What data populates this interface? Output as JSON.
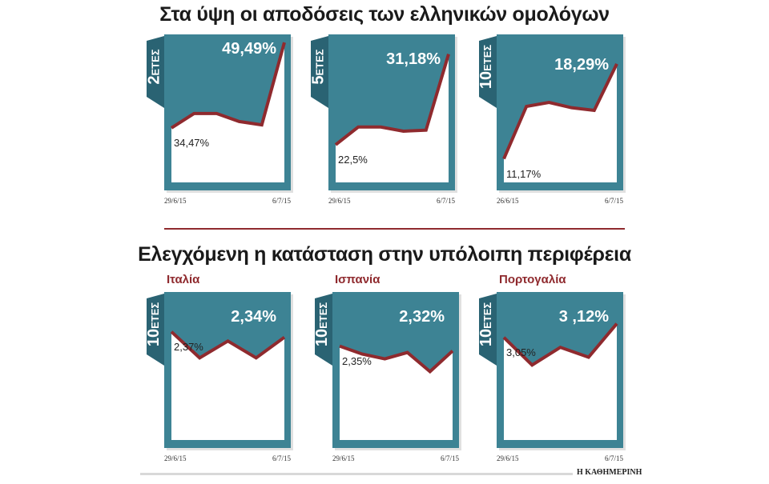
{
  "titles": {
    "top": "Στα ύψη οι αποδόσεις των ελληνικών ομολόγων",
    "bottom": "Ελεγχόμενη η κατάσταση στην υπόλοιπη περιφέρεια"
  },
  "credit": "Η ΚΑΘΗΜΕΡΙΝΗ",
  "colors": {
    "panel": "#3d8394",
    "tab": "#2a6373",
    "line": "#8f2a2e",
    "accent_text": "#8f2a2e"
  },
  "chart_data": [
    {
      "type": "line",
      "country": "",
      "tenor_num": "2",
      "tenor_unit": "ΕΤΕΣ",
      "x_start": "29/6/15",
      "x_end": "6/7/15",
      "values": [
        34.47,
        37.0,
        37.0,
        35.6,
        35.0,
        49.49
      ],
      "start_label": "34,47%",
      "end_label": "49,49%",
      "ylim": [
        24.9,
        49.5
      ]
    },
    {
      "type": "line",
      "country": "",
      "tenor_num": "5",
      "tenor_unit": "ΕΤΕΣ",
      "x_start": "29/6/15",
      "x_end": "6/7/15",
      "values": [
        22.5,
        24.2,
        24.2,
        23.8,
        23.9,
        31.18
      ],
      "start_label": "22,5%",
      "end_label": "31,18%",
      "ylim": [
        18.9,
        32.3
      ]
    },
    {
      "type": "line",
      "country": "",
      "tenor_num": "10",
      "tenor_unit": "ΕΤΕΣ",
      "x_start": "26/6/15",
      "x_end": "6/7/15",
      "values": [
        11.17,
        15.1,
        15.4,
        15.0,
        14.8,
        18.29
      ],
      "start_label": "11,17%",
      "end_label": "18,29%",
      "ylim": [
        9.4,
        19.9
      ]
    },
    {
      "type": "line",
      "country": "Ιταλία",
      "tenor_num": "10",
      "tenor_unit": "ΕΤΕΣ",
      "x_start": "29/6/15",
      "x_end": "6/7/15",
      "values": [
        2.37,
        2.23,
        2.32,
        2.23,
        2.34
      ],
      "start_label": "2,37%",
      "end_label": "2,34%",
      "ylim": [
        1.79,
        2.54
      ]
    },
    {
      "type": "line",
      "country": "Ισπανία",
      "tenor_num": "10",
      "tenor_unit": "ΕΤΕΣ",
      "x_start": "29/6/15",
      "x_end": "6/7/15",
      "values": [
        2.35,
        2.3,
        2.27,
        2.31,
        2.19,
        2.32
      ],
      "start_label": "2,35%",
      "end_label": "2,32%",
      "ylim": [
        1.76,
        2.64
      ]
    },
    {
      "type": "line",
      "country": "Πορτογαλία",
      "tenor_num": "10",
      "tenor_unit": "ΕΤΕΣ",
      "x_start": "29/6/15",
      "x_end": "6/7/15",
      "values": [
        3.05,
        2.91,
        3.0,
        2.95,
        3.12
      ],
      "start_label": "3,05%",
      "end_label": "3 ,12%",
      "ylim": [
        2.53,
        3.24
      ]
    }
  ]
}
